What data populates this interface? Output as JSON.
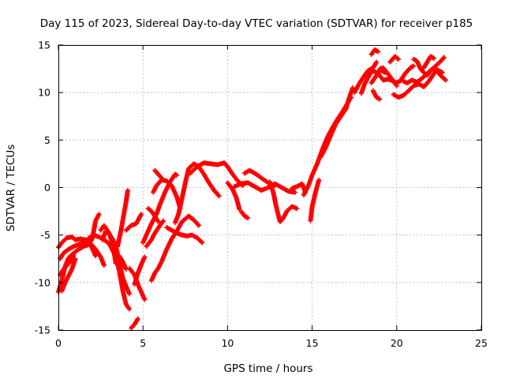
{
  "chart_data": {
    "type": "scatter",
    "title": "Day 115 of 2023, Sidereal Day-to-day VTEC variation (SDTVAR) for receiver p185",
    "xlabel": "GPS time / hours",
    "ylabel": "SDTVAR / TECUs",
    "xlim": [
      0,
      25
    ],
    "ylim": [
      -15,
      15
    ],
    "xticks": [
      0,
      5,
      10,
      15,
      20,
      25
    ],
    "yticks": [
      -15,
      -10,
      -5,
      0,
      5,
      10,
      15
    ],
    "grid": true,
    "legend": "none",
    "marker": "plus",
    "color": "#ff0000",
    "tracks": [
      [
        [
          0.0,
          -6.3
        ],
        [
          0.2,
          -5.8
        ],
        [
          0.5,
          -5.3
        ],
        [
          0.8,
          -5.2
        ],
        [
          1.0,
          -5.5
        ],
        [
          1.3,
          -5.4
        ],
        [
          1.6,
          -5.5
        ],
        [
          1.9,
          -5.9
        ],
        [
          2.2,
          -6.5
        ],
        [
          2.5,
          -7.3
        ],
        [
          2.7,
          -8.2
        ]
      ],
      [
        [
          0.0,
          -11.0
        ],
        [
          0.2,
          -9.8
        ],
        [
          0.4,
          -8.3
        ],
        [
          0.6,
          -7.4
        ],
        [
          0.9,
          -6.9
        ],
        [
          1.2,
          -6.5
        ],
        [
          1.5,
          -6.2
        ],
        [
          1.8,
          -6.0
        ],
        [
          2.0,
          -5.4
        ],
        [
          2.2,
          -3.5
        ],
        [
          2.4,
          -2.8
        ]
      ],
      [
        [
          0.1,
          -7.5
        ],
        [
          0.3,
          -6.9
        ],
        [
          0.6,
          -6.5
        ],
        [
          0.9,
          -6.2
        ],
        [
          1.2,
          -6.0
        ],
        [
          1.5,
          -5.7
        ],
        [
          1.8,
          -5.6
        ],
        [
          2.0,
          -6.4
        ],
        [
          2.2,
          -7.2
        ]
      ],
      [
        [
          0.1,
          -9.2
        ],
        [
          0.3,
          -8.6
        ],
        [
          0.5,
          -8.2
        ],
        [
          0.7,
          -7.8
        ],
        [
          0.9,
          -7.1
        ]
      ],
      [
        [
          0.2,
          -10.9
        ],
        [
          0.4,
          -10.0
        ],
        [
          0.6,
          -9.3
        ],
        [
          0.8,
          -8.6
        ],
        [
          1.0,
          -7.5
        ]
      ],
      [
        [
          1.5,
          -6.0
        ],
        [
          1.8,
          -5.3
        ],
        [
          2.1,
          -5.0
        ],
        [
          2.4,
          -5.2
        ],
        [
          2.7,
          -5.5
        ],
        [
          3.0,
          -5.9
        ],
        [
          3.2,
          -6.6
        ],
        [
          3.4,
          -7.3
        ],
        [
          3.6,
          -8.8
        ],
        [
          3.8,
          -10.8
        ],
        [
          4.0,
          -12.3
        ],
        [
          4.2,
          -12.8
        ]
      ],
      [
        [
          2.6,
          -5.5
        ],
        [
          2.8,
          -4.6
        ],
        [
          3.0,
          -4.9
        ],
        [
          3.2,
          -5.4
        ],
        [
          3.4,
          -6.2
        ],
        [
          3.6,
          -7.8
        ],
        [
          3.8,
          -9.5
        ],
        [
          4.0,
          -10.4
        ],
        [
          4.2,
          -11.2
        ]
      ],
      [
        [
          2.5,
          -4.5
        ],
        [
          2.7,
          -4.0
        ],
        [
          3.0,
          -4.8
        ],
        [
          3.2,
          -5.9
        ],
        [
          3.4,
          -8.0
        ],
        [
          3.6,
          -7.2
        ],
        [
          3.8,
          -7.8
        ],
        [
          4.0,
          -8.6
        ]
      ],
      [
        [
          3.5,
          -6.2
        ],
        [
          3.7,
          -4.5
        ],
        [
          3.9,
          -2.5
        ],
        [
          4.0,
          -1.5
        ],
        [
          4.1,
          -0.3
        ]
      ],
      [
        [
          4.0,
          -4.5
        ],
        [
          4.3,
          -4.0
        ],
        [
          4.6,
          -3.8
        ],
        [
          4.9,
          -2.8
        ]
      ],
      [
        [
          4.2,
          -8.5
        ],
        [
          4.5,
          -9.2
        ],
        [
          4.7,
          -10.2
        ],
        [
          4.9,
          -11.0
        ],
        [
          5.1,
          -11.8
        ]
      ],
      [
        [
          4.3,
          -14.8
        ],
        [
          4.5,
          -14.4
        ],
        [
          4.7,
          -13.8
        ]
      ],
      [
        [
          4.5,
          -10.2
        ],
        [
          4.7,
          -9.0
        ],
        [
          4.9,
          -8.1
        ],
        [
          5.1,
          -7.3
        ]
      ],
      [
        [
          5.0,
          -5.8
        ],
        [
          5.2,
          -5.0
        ],
        [
          5.5,
          -3.8
        ],
        [
          5.8,
          -2.8
        ],
        [
          6.0,
          -1.8
        ],
        [
          6.3,
          -0.5
        ],
        [
          6.6,
          0.6
        ],
        [
          6.9,
          1.4
        ],
        [
          7.0,
          1.3
        ]
      ],
      [
        [
          5.2,
          -6.2
        ],
        [
          5.5,
          -5.5
        ],
        [
          5.7,
          -4.8
        ],
        [
          6.0,
          -4.0
        ],
        [
          6.2,
          -3.5
        ]
      ],
      [
        [
          5.5,
          -9.8
        ],
        [
          5.7,
          -9.0
        ],
        [
          5.9,
          -8.5
        ],
        [
          6.1,
          -7.8
        ],
        [
          6.4,
          -6.5
        ],
        [
          6.7,
          -5.4
        ],
        [
          7.0,
          -4.6
        ],
        [
          7.3,
          -3.6
        ],
        [
          7.7,
          -3.0
        ],
        [
          8.0,
          -3.4
        ],
        [
          8.3,
          -4.0
        ]
      ],
      [
        [
          5.3,
          -2.2
        ],
        [
          5.5,
          -2.5
        ],
        [
          5.7,
          -3.0
        ],
        [
          5.9,
          -3.6
        ]
      ],
      [
        [
          5.6,
          -0.5
        ],
        [
          5.8,
          0.2
        ],
        [
          6.1,
          0.8
        ],
        [
          6.4,
          0.7
        ],
        [
          6.7,
          0.2
        ],
        [
          7.0,
          -1.0
        ],
        [
          7.2,
          -2.2
        ]
      ],
      [
        [
          5.7,
          1.8
        ],
        [
          5.9,
          1.4
        ],
        [
          6.2,
          0.8
        ]
      ],
      [
        [
          6.4,
          -4.2
        ],
        [
          6.7,
          -4.5
        ],
        [
          7.0,
          -4.8
        ],
        [
          7.3,
          -5.0
        ],
        [
          7.6,
          -5.1
        ],
        [
          7.9,
          -5.0
        ],
        [
          8.2,
          -5.3
        ],
        [
          8.5,
          -5.8
        ]
      ],
      [
        [
          6.9,
          -3.7
        ],
        [
          7.1,
          -2.8
        ],
        [
          7.3,
          -1.2
        ],
        [
          7.5,
          0.5
        ],
        [
          7.7,
          2.0
        ],
        [
          8.0,
          2.5
        ],
        [
          8.3,
          2.2
        ],
        [
          8.6,
          1.4
        ],
        [
          8.9,
          0.5
        ],
        [
          9.2,
          -0.3
        ],
        [
          9.5,
          -0.9
        ]
      ],
      [
        [
          7.8,
          1.5
        ],
        [
          8.2,
          2.2
        ],
        [
          8.6,
          2.6
        ],
        [
          9.0,
          2.5
        ],
        [
          9.4,
          2.4
        ],
        [
          9.8,
          2.6
        ],
        [
          10.0,
          2.2
        ],
        [
          10.3,
          1.4
        ],
        [
          10.6,
          0.7
        ],
        [
          10.9,
          0.2
        ]
      ],
      [
        [
          10.0,
          0.5
        ],
        [
          10.3,
          -0.2
        ],
        [
          10.5,
          -1.0
        ],
        [
          10.6,
          -1.6
        ],
        [
          10.7,
          -2.3
        ]
      ],
      [
        [
          10.4,
          0.1
        ],
        [
          10.8,
          0.4
        ],
        [
          11.2,
          0.5
        ],
        [
          11.6,
          0.1
        ],
        [
          12.0,
          -0.3
        ],
        [
          12.4,
          0.0
        ],
        [
          12.8,
          0.4
        ],
        [
          13.2,
          0.0
        ],
        [
          13.6,
          -0.4
        ],
        [
          14.0,
          -0.5
        ]
      ],
      [
        [
          10.8,
          -2.5
        ],
        [
          11.0,
          -3.0
        ],
        [
          11.2,
          -3.2
        ]
      ],
      [
        [
          11.0,
          1.5
        ],
        [
          11.3,
          1.8
        ],
        [
          11.7,
          1.4
        ],
        [
          12.0,
          1.0
        ],
        [
          12.4,
          0.5
        ],
        [
          12.8,
          0.2
        ]
      ],
      [
        [
          12.5,
          0.6
        ],
        [
          12.7,
          -0.5
        ],
        [
          12.9,
          -2.2
        ],
        [
          13.1,
          -3.6
        ],
        [
          13.3,
          -3.2
        ],
        [
          13.5,
          -2.5
        ],
        [
          13.8,
          -2.0
        ],
        [
          14.1,
          -2.2
        ]
      ],
      [
        [
          13.8,
          -0.1
        ],
        [
          14.1,
          0.1
        ],
        [
          14.4,
          0.4
        ],
        [
          14.6,
          -0.5
        ]
      ],
      [
        [
          14.5,
          -0.8
        ],
        [
          14.8,
          0.3
        ],
        [
          15.0,
          1.3
        ],
        [
          15.3,
          2.5
        ],
        [
          15.6,
          4.0
        ],
        [
          15.9,
          5.3
        ],
        [
          16.2,
          6.3
        ],
        [
          16.5,
          7.2
        ],
        [
          16.8,
          8.0
        ],
        [
          17.1,
          8.9
        ],
        [
          17.3,
          9.5
        ]
      ],
      [
        [
          14.9,
          -3.5
        ],
        [
          15.0,
          -2.0
        ],
        [
          15.2,
          -0.5
        ],
        [
          15.4,
          0.8
        ]
      ],
      [
        [
          15.5,
          3.2
        ],
        [
          15.8,
          4.2
        ],
        [
          16.1,
          5.5
        ],
        [
          16.4,
          6.7
        ],
        [
          16.7,
          7.5
        ],
        [
          17.0,
          8.3
        ],
        [
          17.2,
          9.5
        ],
        [
          17.4,
          10.5
        ]
      ],
      [
        [
          17.5,
          10.0
        ],
        [
          17.8,
          11.0
        ],
        [
          18.1,
          11.8
        ],
        [
          18.3,
          12.3
        ],
        [
          18.6,
          12.6
        ],
        [
          18.8,
          13.2
        ]
      ],
      [
        [
          17.9,
          9.9
        ],
        [
          18.1,
          10.9
        ],
        [
          18.4,
          11.9
        ],
        [
          18.6,
          12.3
        ],
        [
          18.9,
          12.0
        ],
        [
          19.2,
          11.3
        ],
        [
          19.5,
          11.4
        ],
        [
          19.8,
          11.2
        ],
        [
          20.0,
          10.7
        ]
      ],
      [
        [
          18.5,
          11.0
        ],
        [
          18.8,
          11.8
        ],
        [
          19.0,
          12.4
        ],
        [
          19.3,
          12.1
        ]
      ],
      [
        [
          18.5,
          14.0
        ],
        [
          18.7,
          14.5
        ],
        [
          18.9,
          14.3
        ]
      ],
      [
        [
          18.6,
          10.2
        ],
        [
          18.8,
          9.5
        ],
        [
          19.0,
          9.3
        ]
      ],
      [
        [
          19.0,
          12.5
        ],
        [
          19.2,
          12.6
        ],
        [
          19.6,
          11.7
        ],
        [
          19.9,
          11.0
        ],
        [
          20.2,
          11.2
        ],
        [
          20.5,
          12.0
        ],
        [
          20.8,
          12.6
        ],
        [
          21.0,
          12.8
        ]
      ],
      [
        [
          19.6,
          13.2
        ],
        [
          19.9,
          13.8
        ],
        [
          20.1,
          13.5
        ]
      ],
      [
        [
          19.8,
          9.8
        ],
        [
          20.1,
          9.5
        ],
        [
          20.4,
          9.7
        ],
        [
          20.7,
          10.2
        ],
        [
          21.0,
          10.7
        ],
        [
          21.3,
          10.9
        ],
        [
          21.6,
          10.6
        ],
        [
          21.9,
          11.2
        ],
        [
          22.2,
          12.0
        ],
        [
          22.4,
          12.4
        ],
        [
          22.7,
          12.1
        ]
      ],
      [
        [
          20.3,
          11.3
        ],
        [
          20.6,
          11.0
        ],
        [
          20.9,
          11.3
        ],
        [
          21.2,
          11.1
        ],
        [
          21.5,
          11.5
        ],
        [
          21.8,
          12.0
        ],
        [
          22.1,
          12.5
        ],
        [
          22.4,
          12.2
        ],
        [
          22.7,
          11.6
        ],
        [
          22.9,
          11.3
        ]
      ],
      [
        [
          21.0,
          13.5
        ],
        [
          21.2,
          13.3
        ],
        [
          21.4,
          12.5
        ],
        [
          21.6,
          12.1
        ],
        [
          21.8,
          11.8
        ],
        [
          22.0,
          12.3
        ],
        [
          22.3,
          12.8
        ],
        [
          22.6,
          13.3
        ],
        [
          22.8,
          13.7
        ]
      ],
      [
        [
          21.6,
          12.6
        ],
        [
          21.8,
          13.2
        ],
        [
          22.0,
          13.8
        ],
        [
          22.2,
          13.6
        ]
      ]
    ]
  }
}
